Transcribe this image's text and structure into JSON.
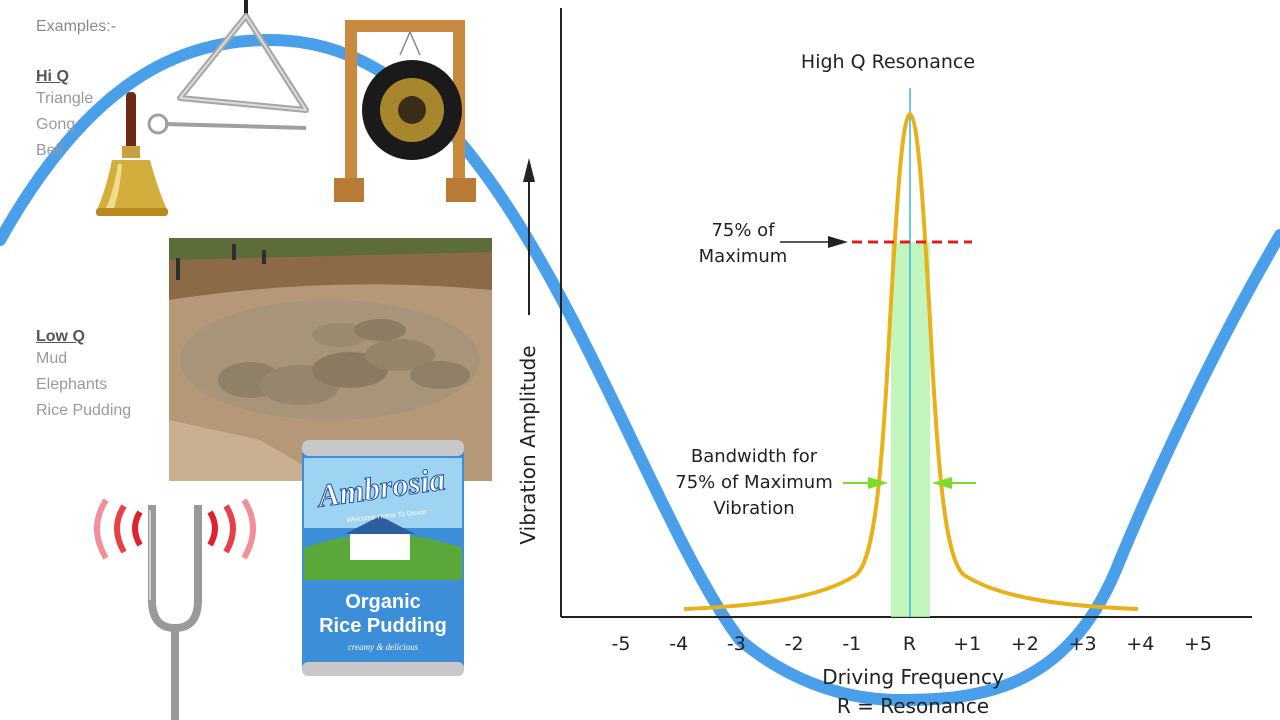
{
  "examples_label": "Examples:-",
  "hi_q": {
    "title": "Hi Q",
    "items": [
      "Triangle",
      "Gong",
      "Bell"
    ]
  },
  "low_q": {
    "title": "Low Q",
    "items": [
      "Mud",
      "Elephants",
      "Rice Pudding"
    ]
  },
  "graph": {
    "title": "High Q Resonance",
    "y_axis_label": "Vibration Amplitude",
    "x_axis_label": "Driving Frequency",
    "x_axis_sublabel": "R = Resonance",
    "x_ticks": [
      "-5",
      "-4",
      "-3",
      "-2",
      "-1",
      "R",
      "+1",
      "+2",
      "+3",
      "+4",
      "+5"
    ],
    "annotation_75_line1": "75% of",
    "annotation_75_line2": "Maximum",
    "bandwidth_line1": "Bandwidth for",
    "bandwidth_line2": "75% of Maximum",
    "bandwidth_line3": "Vibration"
  },
  "can": {
    "brand": "Ambrosia",
    "tagline": "Welcome Home To Devon",
    "product_line1": "Organic",
    "product_line2": "Rice Pudding",
    "subtitle": "creamy & delicious"
  },
  "colors": {
    "wave": "#4a9fea",
    "resonance_curve": "#e8b11a",
    "band_fill": "#b8f5b0",
    "center_line": "#3ab5e0",
    "dashed_75": "#e02020",
    "bandwidth_arrows": "#7cdc2a"
  }
}
